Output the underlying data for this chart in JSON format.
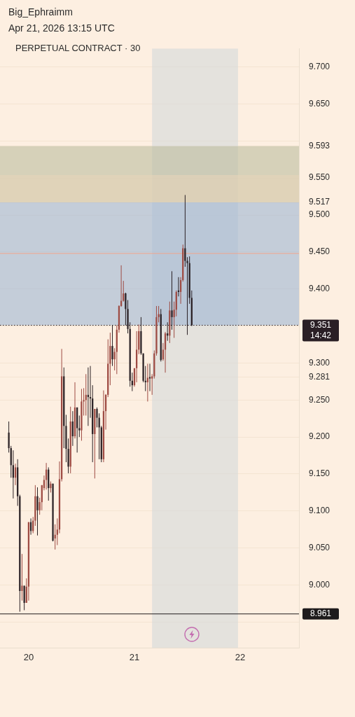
{
  "chart_data": {
    "type": "candlestick",
    "title": "PERPETUAL CONTRACT · 30",
    "annotations": [
      "Big_Ephraimm",
      "Apr 21, 2026 13:15 UTC"
    ],
    "x": [
      "2026-04-19T19:30",
      "2026-04-19T20:00",
      "2026-04-19T20:30",
      "2026-04-19T21:00",
      "2026-04-19T21:30",
      "2026-04-19T22:00",
      "2026-04-19T22:30",
      "2026-04-19T23:00",
      "2026-04-19T23:30",
      "2026-04-20T00:00",
      "2026-04-20T00:30",
      "2026-04-20T01:00",
      "2026-04-20T01:30",
      "2026-04-20T02:00",
      "2026-04-20T02:30",
      "2026-04-20T03:00",
      "2026-04-20T03:30",
      "2026-04-20T04:00",
      "2026-04-20T04:30",
      "2026-04-20T05:00",
      "2026-04-20T05:30",
      "2026-04-20T06:00",
      "2026-04-20T06:30",
      "2026-04-20T07:00",
      "2026-04-20T07:30",
      "2026-04-20T08:00",
      "2026-04-20T08:30",
      "2026-04-20T09:00",
      "2026-04-20T09:30",
      "2026-04-20T10:00",
      "2026-04-20T10:30",
      "2026-04-20T11:00",
      "2026-04-20T11:30",
      "2026-04-20T12:00",
      "2026-04-20T12:30",
      "2026-04-20T13:00",
      "2026-04-20T13:30",
      "2026-04-20T14:00",
      "2026-04-20T14:30",
      "2026-04-20T15:00",
      "2026-04-20T15:30",
      "2026-04-20T16:00",
      "2026-04-20T16:30",
      "2026-04-20T17:00",
      "2026-04-20T17:30",
      "2026-04-20T18:00",
      "2026-04-20T18:30",
      "2026-04-20T19:00",
      "2026-04-20T19:30",
      "2026-04-20T20:00",
      "2026-04-20T20:30",
      "2026-04-20T21:00",
      "2026-04-20T21:30",
      "2026-04-20T22:00",
      "2026-04-20T22:30",
      "2026-04-20T23:00",
      "2026-04-20T23:30",
      "2026-04-21T00:00",
      "2026-04-21T00:30",
      "2026-04-21T01:00",
      "2026-04-21T01:30",
      "2026-04-21T02:00",
      "2026-04-21T02:30",
      "2026-04-21T03:00",
      "2026-04-21T03:30",
      "2026-04-21T04:00",
      "2026-04-21T04:30",
      "2026-04-21T05:00",
      "2026-04-21T05:30",
      "2026-04-21T06:00",
      "2026-04-21T06:30",
      "2026-04-21T07:00",
      "2026-04-21T07:30",
      "2026-04-21T08:00",
      "2026-04-21T08:30",
      "2026-04-21T09:00",
      "2026-04-21T09:30",
      "2026-04-21T10:00",
      "2026-04-21T10:30",
      "2026-04-21T11:00",
      "2026-04-21T11:30",
      "2026-04-21T12:00",
      "2026-04-21T12:30",
      "2026-04-21T13:00"
    ],
    "ohlc": [
      [
        9.206,
        9.221,
        9.179,
        9.185
      ],
      [
        9.185,
        9.188,
        9.145,
        9.162
      ],
      [
        9.162,
        9.182,
        9.117,
        9.145
      ],
      [
        9.145,
        9.164,
        9.135,
        9.159
      ],
      [
        9.159,
        9.17,
        9.107,
        9.12
      ],
      [
        9.12,
        9.122,
        8.964,
        8.992
      ],
      [
        8.992,
        9.042,
        8.979,
        8.999
      ],
      [
        8.999,
        8.999,
        8.966,
        8.976
      ],
      [
        8.976,
        9.009,
        8.976,
        8.998
      ],
      [
        8.998,
        9.085,
        8.979,
        9.085
      ],
      [
        9.085,
        9.09,
        9.068,
        9.073
      ],
      [
        9.073,
        9.092,
        9.07,
        9.087
      ],
      [
        9.087,
        9.135,
        9.08,
        9.12
      ],
      [
        9.12,
        9.132,
        9.067,
        9.101
      ],
      [
        9.101,
        9.118,
        9.095,
        9.112
      ],
      [
        9.112,
        9.135,
        9.101,
        9.135
      ],
      [
        9.131,
        9.148,
        9.128,
        9.142
      ],
      [
        9.142,
        9.165,
        9.129,
        9.156
      ],
      [
        9.156,
        9.159,
        9.114,
        9.131
      ],
      [
        9.131,
        9.14,
        9.125,
        9.137
      ],
      [
        9.137,
        9.137,
        9.059,
        9.06
      ],
      [
        9.063,
        9.082,
        9.048,
        9.068
      ],
      [
        9.068,
        9.09,
        9.054,
        9.075
      ],
      [
        9.075,
        9.167,
        9.07,
        9.143
      ],
      [
        9.143,
        9.319,
        9.14,
        9.282
      ],
      [
        9.282,
        9.294,
        9.185,
        9.215
      ],
      [
        9.215,
        9.23,
        9.166,
        9.184
      ],
      [
        9.184,
        9.198,
        9.151,
        9.16
      ],
      [
        9.16,
        9.241,
        9.151,
        9.221
      ],
      [
        9.221,
        9.235,
        9.188,
        9.201
      ],
      [
        9.201,
        9.274,
        9.198,
        9.24
      ],
      [
        9.24,
        9.24,
        9.179,
        9.212
      ],
      [
        9.212,
        9.229,
        9.2,
        9.209
      ],
      [
        9.209,
        9.265,
        9.195,
        9.248
      ],
      [
        9.248,
        9.266,
        9.229,
        9.25
      ],
      [
        9.25,
        9.285,
        9.229,
        9.257
      ],
      [
        9.257,
        9.294,
        9.215,
        9.254
      ],
      [
        9.254,
        9.296,
        9.226,
        9.252
      ],
      [
        9.252,
        9.27,
        9.166,
        9.204
      ],
      [
        9.204,
        9.238,
        9.144,
        9.238
      ],
      [
        9.238,
        9.24,
        9.213,
        9.226
      ],
      [
        9.226,
        9.232,
        9.17,
        9.213
      ],
      [
        9.213,
        9.215,
        9.166,
        9.17
      ],
      [
        9.17,
        9.263,
        9.166,
        9.235
      ],
      [
        9.235,
        9.258,
        9.21,
        9.257
      ],
      [
        9.257,
        9.332,
        9.254,
        9.299
      ],
      [
        9.299,
        9.341,
        9.27,
        9.323
      ],
      [
        9.323,
        9.351,
        9.296,
        9.305
      ],
      [
        9.305,
        9.32,
        9.29,
        9.315
      ],
      [
        9.315,
        9.351,
        9.285,
        9.345
      ],
      [
        9.345,
        9.378,
        9.341,
        9.377
      ],
      [
        9.377,
        9.432,
        9.376,
        9.384
      ],
      [
        9.384,
        9.411,
        9.383,
        9.394
      ],
      [
        9.394,
        9.395,
        9.351,
        9.373
      ],
      [
        9.373,
        9.385,
        9.34,
        9.346
      ],
      [
        9.346,
        9.355,
        9.268,
        9.276
      ],
      [
        9.276,
        9.287,
        9.262,
        9.27
      ],
      [
        9.27,
        9.293,
        9.268,
        9.293
      ],
      [
        9.293,
        9.343,
        9.274,
        9.318
      ],
      [
        9.318,
        9.352,
        9.312,
        9.343
      ],
      [
        9.343,
        9.362,
        9.311,
        9.313
      ],
      [
        9.313,
        9.313,
        9.274,
        9.276
      ],
      [
        9.276,
        9.296,
        9.262,
        9.274
      ],
      [
        9.274,
        9.299,
        9.248,
        9.28
      ],
      [
        9.281,
        9.299,
        9.262,
        9.279
      ],
      [
        9.279,
        9.285,
        9.257,
        9.282
      ],
      [
        9.282,
        9.317,
        9.279,
        9.313
      ],
      [
        9.313,
        9.377,
        9.31,
        9.362
      ],
      [
        9.362,
        9.377,
        9.355,
        9.366
      ],
      [
        9.366,
        9.373,
        9.302,
        9.304
      ],
      [
        9.305,
        9.327,
        9.303,
        9.318
      ],
      [
        9.318,
        9.342,
        9.287,
        9.34
      ],
      [
        9.34,
        9.355,
        9.33,
        9.337
      ],
      [
        9.337,
        9.383,
        9.327,
        9.371
      ],
      [
        9.371,
        9.424,
        9.345,
        9.362
      ],
      [
        9.362,
        9.383,
        9.334,
        9.372
      ],
      [
        9.372,
        9.398,
        9.363,
        9.396
      ],
      [
        9.398,
        9.416,
        9.39,
        9.396
      ],
      [
        9.396,
        9.416,
        9.38,
        9.412
      ],
      [
        9.412,
        9.46,
        9.41,
        9.455
      ],
      [
        9.455,
        9.527,
        9.43,
        9.438
      ],
      [
        9.438,
        9.443,
        9.338,
        9.435
      ],
      [
        9.435,
        9.444,
        9.38,
        9.388
      ],
      [
        9.388,
        9.398,
        9.35,
        9.351
      ]
    ],
    "colors": [
      "#2b2226",
      "#2b2226",
      "#2b2226",
      "#9e4b43",
      "#2b2226",
      "#2b2226",
      "#9e4b43",
      "#2b2226",
      "#9e4b43",
      "#9e4b43",
      "#2b2226",
      "#9e4b43",
      "#9e4b43",
      "#2b2226",
      "#9e4b43",
      "#9e4b43",
      "#9e4b43",
      "#9e4b43",
      "#2b2226",
      "#9e4b43",
      "#2b2226",
      "#9e4b43",
      "#9e4b43",
      "#9e4b43",
      "#9e4b43",
      "#2b2226",
      "#2b2226",
      "#2b2226",
      "#9e4b43",
      "#2b2226",
      "#9e4b43",
      "#2b2226",
      "#2b2226",
      "#9e4b43",
      "#9e4b43",
      "#9e4b43",
      "#2b2226",
      "#2b2226",
      "#2b2226",
      "#9e4b43",
      "#2b2226",
      "#2b2226",
      "#2b2226",
      "#9e4b43",
      "#9e4b43",
      "#9e4b43",
      "#9e4b43",
      "#2b2226",
      "#9e4b43",
      "#9e4b43",
      "#9e4b43",
      "#9e4b43",
      "#9e4b43",
      "#2b2226",
      "#2b2226",
      "#2b2226",
      "#2b2226",
      "#9e4b43",
      "#9e4b43",
      "#9e4b43",
      "#2b2226",
      "#2b2226",
      "#2b2226",
      "#9e4b43",
      "#2b2226",
      "#9e4b43",
      "#9e4b43",
      "#9e4b43",
      "#9e4b43",
      "#2b2226",
      "#9e4b43",
      "#9e4b43",
      "#2b2226",
      "#9e4b43",
      "#2b2226",
      "#9e4b43",
      "#9e4b43",
      "#2b2226",
      "#9e4b43",
      "#9e4b43",
      "#2b2226",
      "#2b2226",
      "#2b2226",
      "#2b2226"
    ],
    "xlim": [
      "2026-04-19T17:30",
      "2026-04-22T13:20"
    ],
    "xticks": [
      {
        "value": "2026-04-20",
        "label": "20"
      },
      {
        "value": "2026-04-21",
        "label": "21"
      },
      {
        "value": "2026-04-22",
        "label": "22"
      }
    ],
    "ylim": [
      8.915,
      9.725
    ],
    "yticks": [
      {
        "value": 8.95,
        "label": null
      },
      {
        "value": 9.0,
        "label": "9.000"
      },
      {
        "value": 9.05,
        "label": "9.050"
      },
      {
        "value": 9.1,
        "label": "9.100"
      },
      {
        "value": 9.15,
        "label": "9.150"
      },
      {
        "value": 9.2,
        "label": "9.200"
      },
      {
        "value": 9.25,
        "label": "9.250"
      },
      {
        "value": 9.281,
        "label": "9.281"
      },
      {
        "value": 9.3,
        "label": "9.300"
      },
      {
        "value": 9.35,
        "label": null
      },
      {
        "value": 9.4,
        "label": "9.400"
      },
      {
        "value": 9.45,
        "label": "9.450"
      },
      {
        "value": 9.5,
        "label": "9.500"
      },
      {
        "value": 9.517,
        "label": "9.517"
      },
      {
        "value": 9.55,
        "label": "9.550"
      },
      {
        "value": 9.593,
        "label": "9.593"
      },
      {
        "value": 9.6,
        "label": null
      },
      {
        "value": 9.65,
        "label": "9.650"
      },
      {
        "value": 9.7,
        "label": "9.700"
      }
    ],
    "grid": "y",
    "bands": [
      {
        "axis": "x",
        "from": "2026-04-21T04:00",
        "to": "2026-04-21T23:30",
        "color": "#d3d8da"
      },
      {
        "axis": "y",
        "from": 9.517,
        "to": 9.593,
        "color": "#bdbc9f"
      },
      {
        "axis": "y",
        "from": 9.351,
        "to": 9.517,
        "color": "#9fb5d4"
      },
      {
        "axis": "y",
        "from": 9.517,
        "to": 9.554,
        "color": "#e6d3b9"
      }
    ],
    "ref_lines": [
      {
        "axis": "y",
        "value": 9.448,
        "color": "#f2a48a",
        "line_style": "solid"
      },
      {
        "axis": "y",
        "value": 9.351,
        "label": "9.351\n14:42",
        "color": "#2a1f25",
        "line_style": "dotted"
      },
      {
        "axis": "y",
        "value": 8.961,
        "label": "8.961",
        "color": "#1e1b1c",
        "line_style": "solid"
      }
    ]
  }
}
